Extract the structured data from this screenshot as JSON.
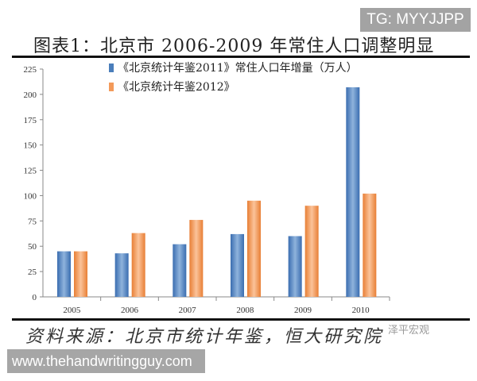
{
  "watermark_top": "TG: MYYJJPP",
  "figure_title": "图表1：北京市 2006-2009 年常住人口调整明显",
  "source": "资料来源：北京市统计年鉴，恒大研究院",
  "brand": "泽平宏观",
  "watermark_bottom": "www.thehandwritingguy.com",
  "chart_data": {
    "type": "bar",
    "categories": [
      "2005",
      "2006",
      "2007",
      "2008",
      "2009",
      "2010"
    ],
    "series": [
      {
        "name": "《北京统计年鉴2011》常住人口年增量（万人）",
        "color": "#4a7ebb",
        "values": [
          45,
          43,
          52,
          62,
          60,
          207
        ]
      },
      {
        "name": "《北京统计年鉴2012》",
        "color": "#f39a5a",
        "values": [
          45,
          63,
          76,
          95,
          90,
          102
        ]
      }
    ],
    "ylim": [
      0,
      225
    ],
    "yticks": [
      "0",
      "25",
      "50",
      "75",
      "100",
      "125",
      "150",
      "175",
      "200",
      "225"
    ],
    "grid": false,
    "legend_position": "top"
  }
}
